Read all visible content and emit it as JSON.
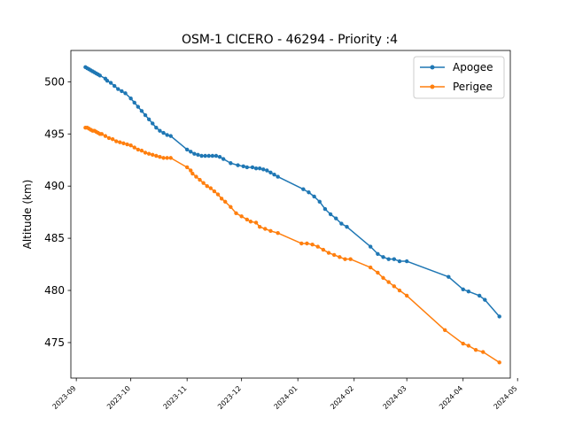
{
  "chart_data": {
    "type": "line",
    "title": "OSM-1 CICERO - 46294 - Priority :4",
    "xlabel": "",
    "ylabel": "Altitude (km)",
    "xlim": [
      "2023-08-29",
      "2024-04-27"
    ],
    "ylim": [
      471.6,
      503.0
    ],
    "x_ticks": [
      "2023-09-01",
      "2023-10-01",
      "2023-11-01",
      "2023-12-01",
      "2024-01-01",
      "2024-02-01",
      "2024-03-01",
      "2024-04-01",
      "2024-05-01"
    ],
    "x_tick_labels": [
      "2023-09",
      "2023-10",
      "2023-11",
      "2023-12",
      "2024-01",
      "2024-02",
      "2024-03",
      "2024-04",
      "2024-05"
    ],
    "y_ticks": [
      475,
      480,
      485,
      490,
      495,
      500
    ],
    "y_tick_labels": [
      "475",
      "480",
      "485",
      "490",
      "495",
      "500"
    ],
    "legend_position": "top-right",
    "grid": false,
    "series": [
      {
        "name": "Apogee",
        "color": "#1f77b4",
        "points": [
          [
            "2023-09-06",
            501.4
          ],
          [
            "2023-09-07",
            501.3
          ],
          [
            "2023-09-08",
            501.2
          ],
          [
            "2023-09-09",
            501.1
          ],
          [
            "2023-09-10",
            501.0
          ],
          [
            "2023-09-11",
            500.9
          ],
          [
            "2023-09-12",
            500.8
          ],
          [
            "2023-09-13",
            500.7
          ],
          [
            "2023-09-14",
            500.6
          ],
          [
            "2023-09-17",
            500.3
          ],
          [
            "2023-09-18",
            500.1
          ],
          [
            "2023-09-20",
            499.9
          ],
          [
            "2023-09-22",
            499.6
          ],
          [
            "2023-09-24",
            499.3
          ],
          [
            "2023-09-26",
            499.1
          ],
          [
            "2023-09-28",
            498.9
          ],
          [
            "2023-10-01",
            498.4
          ],
          [
            "2023-10-03",
            498.0
          ],
          [
            "2023-10-05",
            497.6
          ],
          [
            "2023-10-07",
            497.2
          ],
          [
            "2023-10-09",
            496.8
          ],
          [
            "2023-10-11",
            496.4
          ],
          [
            "2023-10-13",
            496.0
          ],
          [
            "2023-10-15",
            495.6
          ],
          [
            "2023-10-17",
            495.3
          ],
          [
            "2023-10-19",
            495.1
          ],
          [
            "2023-10-21",
            494.9
          ],
          [
            "2023-10-23",
            494.8
          ],
          [
            "2023-11-01",
            493.5
          ],
          [
            "2023-11-03",
            493.3
          ],
          [
            "2023-11-05",
            493.1
          ],
          [
            "2023-11-07",
            493.0
          ],
          [
            "2023-11-09",
            492.9
          ],
          [
            "2023-11-11",
            492.9
          ],
          [
            "2023-11-13",
            492.9
          ],
          [
            "2023-11-15",
            492.9
          ],
          [
            "2023-11-17",
            492.9
          ],
          [
            "2023-11-19",
            492.8
          ],
          [
            "2023-11-21",
            492.6
          ],
          [
            "2023-11-25",
            492.2
          ],
          [
            "2023-11-29",
            492.0
          ],
          [
            "2023-12-02",
            491.9
          ],
          [
            "2023-12-04",
            491.8
          ],
          [
            "2023-12-07",
            491.8
          ],
          [
            "2023-12-09",
            491.7
          ],
          [
            "2023-12-11",
            491.7
          ],
          [
            "2023-12-13",
            491.6
          ],
          [
            "2023-12-15",
            491.5
          ],
          [
            "2023-12-17",
            491.3
          ],
          [
            "2023-12-19",
            491.1
          ],
          [
            "2023-12-21",
            490.9
          ],
          [
            "2024-01-04",
            489.7
          ],
          [
            "2024-01-07",
            489.4
          ],
          [
            "2024-01-10",
            489.0
          ],
          [
            "2024-01-13",
            488.5
          ],
          [
            "2024-01-16",
            487.8
          ],
          [
            "2024-01-19",
            487.3
          ],
          [
            "2024-01-22",
            486.9
          ],
          [
            "2024-01-25",
            486.4
          ],
          [
            "2024-01-28",
            486.1
          ],
          [
            "2024-02-10",
            484.2
          ],
          [
            "2024-02-14",
            483.5
          ],
          [
            "2024-02-17",
            483.2
          ],
          [
            "2024-02-20",
            483.0
          ],
          [
            "2024-02-23",
            483.0
          ],
          [
            "2024-02-26",
            482.8
          ],
          [
            "2024-03-01",
            482.8
          ],
          [
            "2024-03-24",
            481.3
          ],
          [
            "2024-04-01",
            480.1
          ],
          [
            "2024-04-04",
            479.9
          ],
          [
            "2024-04-10",
            479.5
          ],
          [
            "2024-04-13",
            479.1
          ],
          [
            "2024-04-21",
            477.5
          ]
        ]
      },
      {
        "name": "Perigee",
        "color": "#ff7f0e",
        "points": [
          [
            "2023-09-06",
            495.6
          ],
          [
            "2023-09-07",
            495.6
          ],
          [
            "2023-09-08",
            495.5
          ],
          [
            "2023-09-09",
            495.4
          ],
          [
            "2023-09-10",
            495.3
          ],
          [
            "2023-09-11",
            495.3
          ],
          [
            "2023-09-12",
            495.2
          ],
          [
            "2023-09-13",
            495.1
          ],
          [
            "2023-09-14",
            495.0
          ],
          [
            "2023-09-15",
            495.0
          ],
          [
            "2023-09-17",
            494.8
          ],
          [
            "2023-09-19",
            494.6
          ],
          [
            "2023-09-21",
            494.5
          ],
          [
            "2023-09-23",
            494.3
          ],
          [
            "2023-09-25",
            494.2
          ],
          [
            "2023-09-27",
            494.1
          ],
          [
            "2023-09-29",
            494.0
          ],
          [
            "2023-10-01",
            493.9
          ],
          [
            "2023-10-03",
            493.7
          ],
          [
            "2023-10-05",
            493.5
          ],
          [
            "2023-10-07",
            493.4
          ],
          [
            "2023-10-09",
            493.2
          ],
          [
            "2023-10-11",
            493.1
          ],
          [
            "2023-10-13",
            493.0
          ],
          [
            "2023-10-15",
            492.9
          ],
          [
            "2023-10-17",
            492.8
          ],
          [
            "2023-10-19",
            492.7
          ],
          [
            "2023-10-21",
            492.7
          ],
          [
            "2023-10-23",
            492.7
          ],
          [
            "2023-11-01",
            491.8
          ],
          [
            "2023-11-03",
            491.5
          ],
          [
            "2023-11-04",
            491.2
          ],
          [
            "2023-11-06",
            490.9
          ],
          [
            "2023-11-08",
            490.6
          ],
          [
            "2023-11-10",
            490.3
          ],
          [
            "2023-11-12",
            490.0
          ],
          [
            "2023-11-14",
            489.8
          ],
          [
            "2023-11-16",
            489.5
          ],
          [
            "2023-11-18",
            489.2
          ],
          [
            "2023-11-20",
            488.8
          ],
          [
            "2023-11-22",
            488.5
          ],
          [
            "2023-11-25",
            488.0
          ],
          [
            "2023-11-28",
            487.4
          ],
          [
            "2023-12-01",
            487.1
          ],
          [
            "2023-12-04",
            486.8
          ],
          [
            "2023-12-06",
            486.6
          ],
          [
            "2023-12-09",
            486.5
          ],
          [
            "2023-12-11",
            486.1
          ],
          [
            "2023-12-14",
            485.9
          ],
          [
            "2023-12-17",
            485.7
          ],
          [
            "2023-12-21",
            485.5
          ],
          [
            "2024-01-03",
            484.5
          ],
          [
            "2024-01-06",
            484.5
          ],
          [
            "2024-01-09",
            484.4
          ],
          [
            "2024-01-12",
            484.2
          ],
          [
            "2024-01-15",
            483.9
          ],
          [
            "2024-01-18",
            483.6
          ],
          [
            "2024-01-21",
            483.4
          ],
          [
            "2024-01-24",
            483.2
          ],
          [
            "2024-01-27",
            483.0
          ],
          [
            "2024-01-30",
            483.0
          ],
          [
            "2024-02-10",
            482.2
          ],
          [
            "2024-02-14",
            481.7
          ],
          [
            "2024-02-17",
            481.2
          ],
          [
            "2024-02-20",
            480.8
          ],
          [
            "2024-02-23",
            480.4
          ],
          [
            "2024-02-26",
            480.0
          ],
          [
            "2024-03-01",
            479.5
          ],
          [
            "2024-03-22",
            476.2
          ],
          [
            "2024-04-01",
            474.9
          ],
          [
            "2024-04-04",
            474.7
          ],
          [
            "2024-04-08",
            474.3
          ],
          [
            "2024-04-12",
            474.1
          ],
          [
            "2024-04-21",
            473.1
          ]
        ]
      }
    ]
  }
}
